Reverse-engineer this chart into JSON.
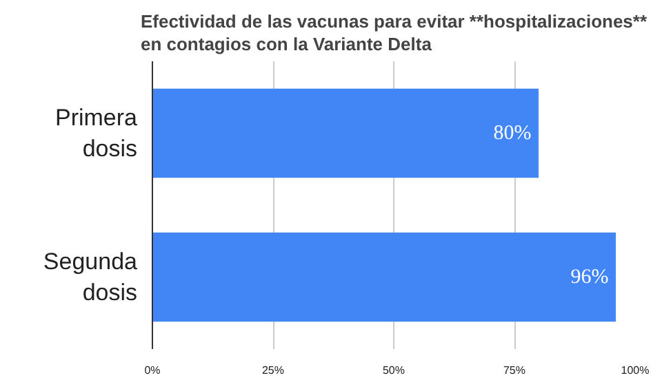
{
  "chart_data": {
    "type": "bar",
    "orientation": "horizontal",
    "title": "Efectividad de las vacunas para evitar **hospitalizaciones** en contagios con la Variante Delta",
    "categories": [
      "Primera dosis",
      "Segunda dosis"
    ],
    "values": [
      80,
      96
    ],
    "value_labels": [
      "80%",
      "96%"
    ],
    "color": "#4285f4",
    "xlim": [
      0,
      100
    ],
    "xticks": [
      {
        "value": 0,
        "label": "0%"
      },
      {
        "value": 25,
        "label": "25%"
      },
      {
        "value": 50,
        "label": "50%"
      },
      {
        "value": 75,
        "label": "75%"
      },
      {
        "value": 100,
        "label": "100%"
      }
    ],
    "grid": "x"
  }
}
